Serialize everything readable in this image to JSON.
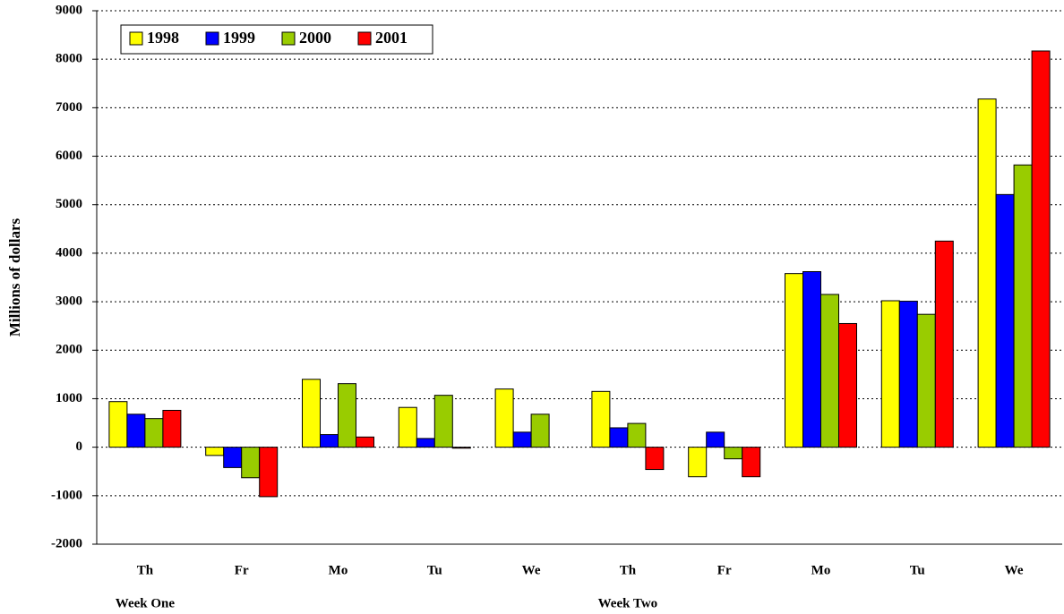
{
  "chart_data": {
    "type": "bar",
    "ylabel": "Millions of dollars",
    "categories": [
      "Th",
      "Fr",
      "Mo",
      "Tu",
      "We",
      "Th",
      "Fr",
      "Mo",
      "Tu",
      "We"
    ],
    "groups": [
      "Week One",
      "Week Two"
    ],
    "series": [
      {
        "name": "1998",
        "color": "#ffff00",
        "values": [
          940,
          -170,
          1400,
          820,
          1200,
          1150,
          -610,
          3580,
          3020,
          7180
        ]
      },
      {
        "name": "1999",
        "color": "#0000ff",
        "values": [
          680,
          -420,
          260,
          180,
          310,
          400,
          310,
          3620,
          3010,
          5210
        ]
      },
      {
        "name": "2000",
        "color": "#99cc00",
        "values": [
          590,
          -630,
          1310,
          1070,
          680,
          490,
          -240,
          3150,
          2740,
          5820
        ]
      },
      {
        "name": "2001",
        "color": "#ff0000",
        "values": [
          760,
          -1020,
          210,
          -20,
          null,
          -460,
          -610,
          2550,
          4250,
          8170
        ]
      }
    ],
    "ylim": [
      -2000,
      9000
    ],
    "yticks": [
      -2000,
      -1000,
      0,
      1000,
      2000,
      3000,
      4000,
      5000,
      6000,
      7000,
      8000,
      9000
    ],
    "grid": true
  }
}
